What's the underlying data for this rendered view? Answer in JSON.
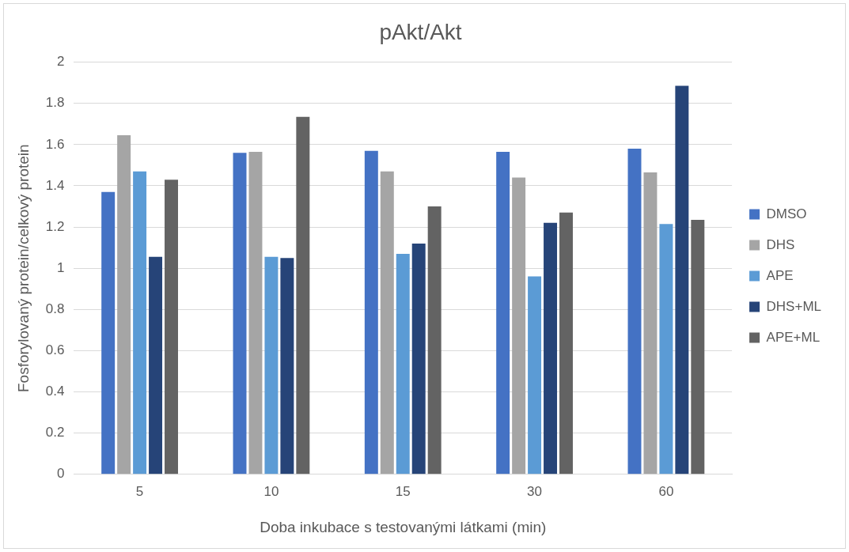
{
  "chart_data": {
    "type": "bar",
    "title": "pAkt/Akt",
    "xlabel": "Doba inkubace s testovanými látkami (min)",
    "ylabel": "Fosforylovaný protein/celkový protein",
    "categories": [
      "5",
      "10",
      "15",
      "30",
      "60"
    ],
    "series": [
      {
        "name": "DMSO",
        "color": "#4472c4",
        "values": [
          1.37,
          1.56,
          1.57,
          1.565,
          1.58
        ]
      },
      {
        "name": "DHS",
        "color": "#a5a5a5",
        "values": [
          1.645,
          1.565,
          1.47,
          1.44,
          1.465
        ]
      },
      {
        "name": "APE",
        "color": "#5b9bd5",
        "values": [
          1.47,
          1.055,
          1.07,
          0.96,
          1.215
        ]
      },
      {
        "name": "DHS+ML",
        "color": "#264478",
        "values": [
          1.055,
          1.05,
          1.12,
          1.22,
          1.885
        ]
      },
      {
        "name": "APE+ML",
        "color": "#636363",
        "values": [
          1.43,
          1.735,
          1.3,
          1.27,
          1.235
        ]
      }
    ],
    "ylim": [
      0,
      2
    ],
    "yticks": [
      0,
      0.2,
      0.4,
      0.6,
      0.8,
      1,
      1.2,
      1.4,
      1.6,
      1.8,
      2
    ],
    "grid": "y",
    "legend": "right"
  }
}
